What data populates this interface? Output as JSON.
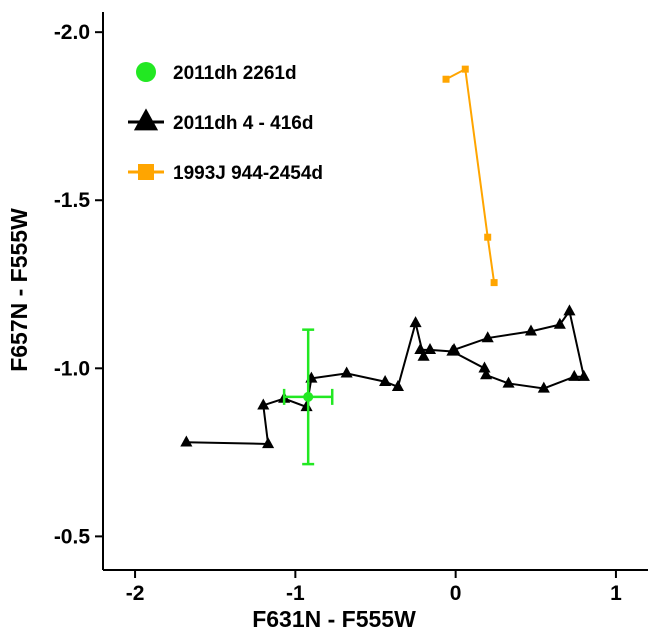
{
  "chart_data": {
    "type": "scatter",
    "xlabel": "F631N - F555W",
    "ylabel": "F657N - F555W",
    "xlim": [
      -2.2,
      1.2
    ],
    "ylim": [
      -0.4,
      -2.06
    ],
    "y_axis_inverted": true,
    "grid": false,
    "legend_position": "top-left",
    "x_ticks": [
      {
        "value": -2,
        "label": "-2"
      },
      {
        "value": -1,
        "label": "-1"
      },
      {
        "value": 0,
        "label": "0"
      },
      {
        "value": 1,
        "label": "1"
      }
    ],
    "y_ticks": [
      {
        "value": -2.0,
        "label": "-2.0"
      },
      {
        "value": -1.5,
        "label": "-1.5"
      },
      {
        "value": -1.0,
        "label": "-1.0"
      },
      {
        "value": -0.5,
        "label": "-0.5"
      }
    ],
    "series": [
      {
        "name": "2011dh 4 - 416d",
        "color": "#000000",
        "marker": "triangle",
        "connected": true,
        "points": [
          {
            "x": -1.68,
            "y": -0.78
          },
          {
            "x": -1.17,
            "y": -0.775
          },
          {
            "x": -1.2,
            "y": -0.89
          },
          {
            "x": -1.07,
            "y": -0.91
          },
          {
            "x": -0.93,
            "y": -0.885
          },
          {
            "x": -0.9,
            "y": -0.97
          },
          {
            "x": -0.68,
            "y": -0.985
          },
          {
            "x": -0.44,
            "y": -0.96
          },
          {
            "x": -0.36,
            "y": -0.945
          },
          {
            "x": -0.25,
            "y": -1.135
          },
          {
            "x": -0.2,
            "y": -1.035
          },
          {
            "x": -0.22,
            "y": -1.055
          },
          {
            "x": -0.16,
            "y": -1.055
          },
          {
            "x": -0.02,
            "y": -1.05
          },
          {
            "x": 0.18,
            "y": -1.0
          },
          {
            "x": 0.19,
            "y": -0.98
          },
          {
            "x": 0.33,
            "y": -0.955
          },
          {
            "x": 0.55,
            "y": -0.94
          },
          {
            "x": 0.74,
            "y": -0.975
          },
          {
            "x": 0.8,
            "y": -0.975
          },
          {
            "x": 0.71,
            "y": -1.17
          },
          {
            "x": 0.65,
            "y": -1.13
          },
          {
            "x": 0.47,
            "y": -1.11
          },
          {
            "x": 0.2,
            "y": -1.09
          },
          {
            "x": -0.01,
            "y": -1.055
          }
        ]
      },
      {
        "name": "1993J 944-2454d",
        "color": "#FFA500",
        "marker": "square",
        "connected": true,
        "points": [
          {
            "x": -0.06,
            "y": -1.86
          },
          {
            "x": 0.06,
            "y": -1.89
          },
          {
            "x": 0.2,
            "y": -1.39
          },
          {
            "x": 0.24,
            "y": -1.255
          }
        ]
      },
      {
        "name": "2011dh 2261d",
        "color": "#22E822",
        "marker": "circle",
        "connected": false,
        "points": [
          {
            "x": -0.92,
            "y": -0.915,
            "xerr": 0.15,
            "yerr_low": 0.2,
            "yerr_high": 0.2
          }
        ]
      }
    ]
  },
  "legend": {
    "items": [
      {
        "label": "2011dh 2261d",
        "color": "#22E822",
        "marker": "circle",
        "line": false
      },
      {
        "label": "2011dh 4 - 416d",
        "color": "#000000",
        "marker": "triangle",
        "line": true
      },
      {
        "label": "1993J 944-2454d",
        "color": "#FFA500",
        "marker": "square",
        "line": true
      }
    ]
  }
}
